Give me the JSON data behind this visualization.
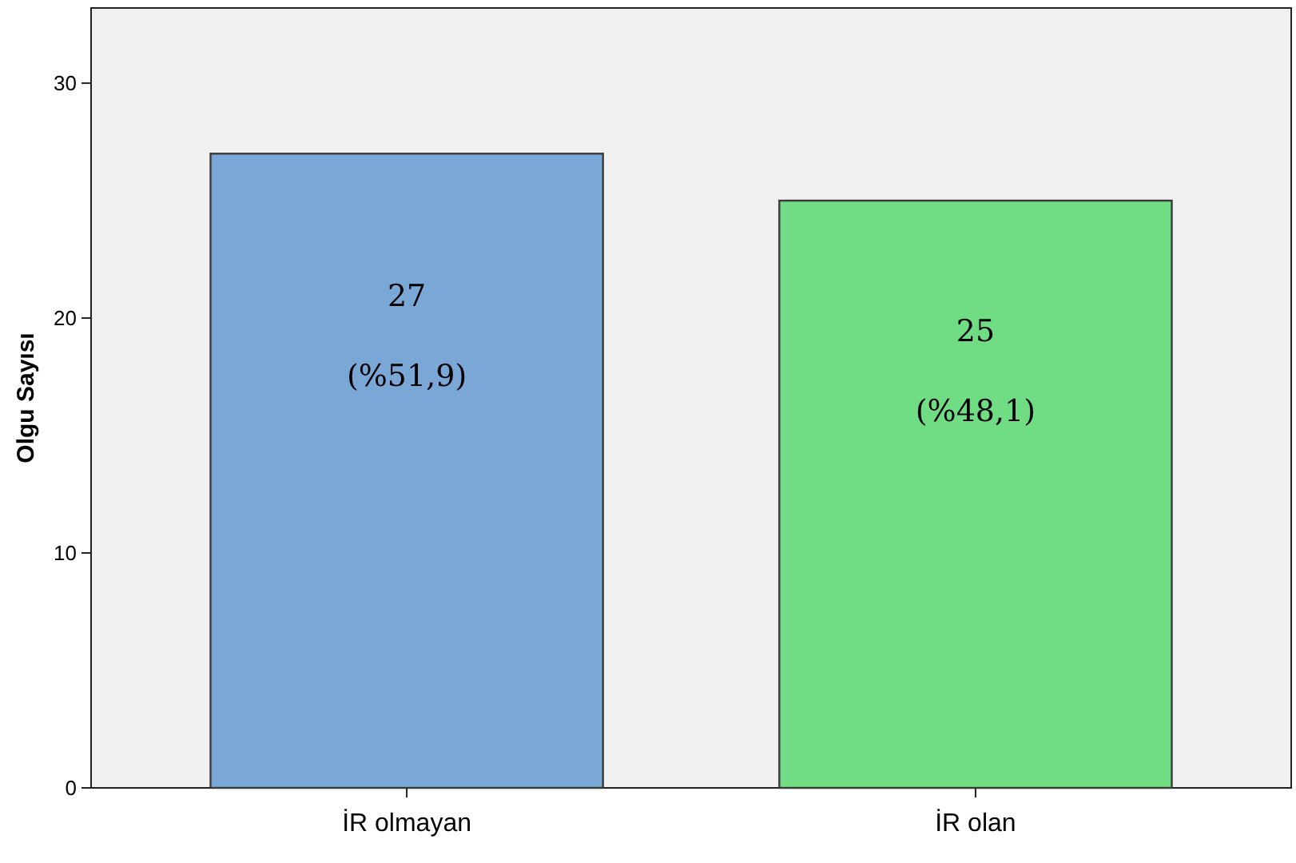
{
  "chart_data": {
    "type": "bar",
    "ylabel": "Olgu Sayısı",
    "categories": [
      "İR olmayan",
      "İR olan"
    ],
    "values": [
      27,
      25
    ],
    "colors": [
      "#7ba7d7",
      "#70dc84"
    ],
    "value_labels": [
      "27\n(%51,9)",
      "25\n(%48,1)"
    ],
    "ylim": [
      0,
      33.2
    ],
    "yticks": [
      0,
      10,
      20,
      30
    ],
    "grid": false
  }
}
